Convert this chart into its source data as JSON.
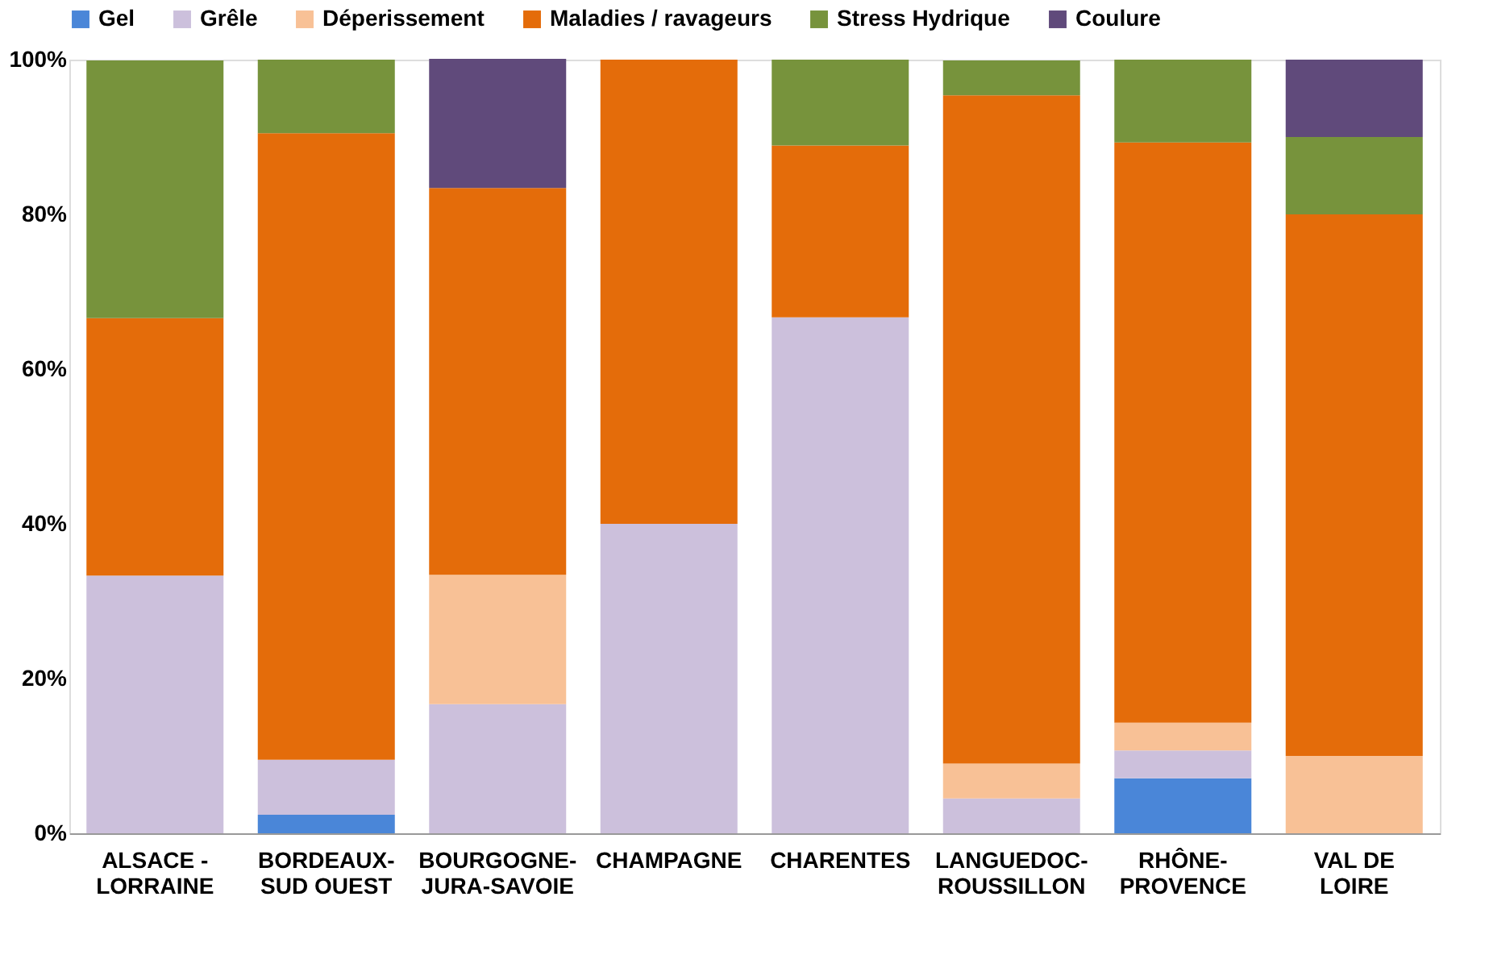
{
  "chart_data": {
    "type": "bar",
    "stacked": true,
    "categories": [
      "ALSACE - LORRAINE",
      "BORDEAUX-SUD OUEST",
      "BOURGOGNE-JURA-SAVOIE",
      "CHAMPAGNE",
      "CHARENTES",
      "LANGUEDOC-ROUSSILLON",
      "RHÔNE-PROVENCE",
      "VAL DE LOIRE"
    ],
    "series": [
      {
        "name": "Gel",
        "color": "#4a86d8",
        "values": [
          null,
          2.4,
          null,
          null,
          null,
          null,
          7.1,
          null
        ]
      },
      {
        "name": "Grêle",
        "color": "#ccc0dc",
        "values": [
          33.3,
          7.1,
          16.7,
          40,
          66.7,
          4.5,
          3.6,
          null
        ]
      },
      {
        "name": "Déperissement",
        "color": "#f8c196",
        "values": [
          null,
          null,
          16.7,
          null,
          null,
          4.5,
          3.6,
          10
        ]
      },
      {
        "name": "Maladies / ravageurs",
        "color": "#e46c0a",
        "values": [
          33.3,
          81,
          50,
          60,
          22.2,
          86.4,
          75,
          70
        ]
      },
      {
        "name": "Stress Hydrique",
        "color": "#77933c",
        "values": [
          33.3,
          9.5,
          null,
          null,
          11.1,
          4.5,
          10.7,
          10
        ]
      },
      {
        "name": "Coulure",
        "color": "#604a7b",
        "values": [
          null,
          null,
          16.7,
          null,
          null,
          null,
          null,
          10
        ]
      }
    ],
    "ylim": [
      0,
      100
    ],
    "yticks": [
      {
        "value": 0,
        "label": "0%"
      },
      {
        "value": 20,
        "label": "20%"
      },
      {
        "value": 40,
        "label": "40%"
      },
      {
        "value": 60,
        "label": "60%"
      },
      {
        "value": 80,
        "label": "80%"
      },
      {
        "value": 100,
        "label": "100%"
      }
    ],
    "grid": false,
    "legend": "top"
  }
}
